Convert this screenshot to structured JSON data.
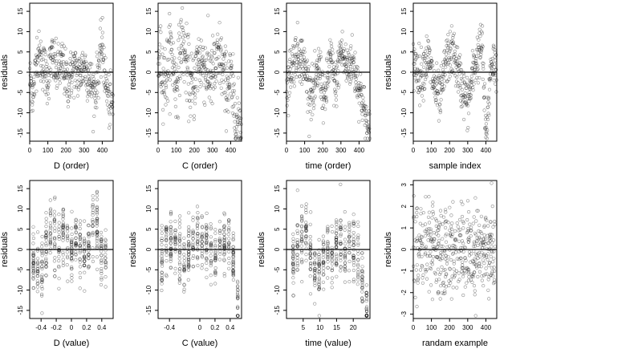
{
  "chart_data": [
    {
      "type": "scatter",
      "xlabel": "D (order)",
      "ylabel": "residuals",
      "xlim": [
        0,
        460
      ],
      "ylim": [
        -17,
        17
      ],
      "xticks": [
        0,
        100,
        200,
        300,
        400
      ],
      "yticks": [
        -15,
        -10,
        -5,
        0,
        5,
        10,
        15
      ],
      "hline": 0,
      "grid": false,
      "n_points": 460,
      "pattern": "clustered waves",
      "points": [
        [
          5,
          -2
        ],
        [
          20,
          -6
        ],
        [
          40,
          5
        ],
        [
          60,
          3
        ],
        [
          80,
          1
        ],
        [
          100,
          -2
        ],
        [
          120,
          4
        ],
        [
          150,
          0
        ],
        [
          180,
          2
        ],
        [
          210,
          -3
        ],
        [
          240,
          1
        ],
        [
          270,
          -1
        ],
        [
          300,
          2
        ],
        [
          330,
          -2
        ],
        [
          360,
          -5
        ],
        [
          400,
          7
        ],
        [
          420,
          -3
        ],
        [
          440,
          -8
        ]
      ]
    },
    {
      "type": "scatter",
      "xlabel": "C (order)",
      "ylabel": "residuals",
      "xlim": [
        0,
        460
      ],
      "ylim": [
        -17,
        17
      ],
      "xticks": [
        0,
        100,
        200,
        300,
        400
      ],
      "yticks": [
        -15,
        -10,
        -5,
        0,
        5,
        10,
        15
      ],
      "hline": 0,
      "grid": false,
      "n_points": 460,
      "pattern": "diffuse cloud",
      "points": [
        [
          10,
          3
        ],
        [
          40,
          -2
        ],
        [
          70,
          6
        ],
        [
          100,
          -4
        ],
        [
          130,
          8
        ],
        [
          160,
          1
        ],
        [
          190,
          -5
        ],
        [
          220,
          3
        ],
        [
          250,
          2
        ],
        [
          280,
          -1
        ],
        [
          310,
          0
        ],
        [
          340,
          4
        ],
        [
          370,
          -3
        ],
        [
          400,
          -2
        ],
        [
          430,
          -12
        ]
      ]
    },
    {
      "type": "scatter",
      "xlabel": "time (order)",
      "ylabel": "residuals",
      "xlim": [
        0,
        460
      ],
      "ylim": [
        -17,
        17
      ],
      "xticks": [
        0,
        100,
        200,
        300,
        400
      ],
      "yticks": [
        -15,
        -10,
        -5,
        0,
        5,
        10,
        15
      ],
      "hline": 0,
      "grid": false,
      "n_points": 460,
      "pattern": "alternating blocks",
      "points": [
        [
          5,
          -3
        ],
        [
          30,
          2
        ],
        [
          60,
          5
        ],
        [
          90,
          3
        ],
        [
          120,
          -3
        ],
        [
          150,
          -6
        ],
        [
          180,
          2
        ],
        [
          210,
          -8
        ],
        [
          240,
          4
        ],
        [
          270,
          -4
        ],
        [
          300,
          6
        ],
        [
          330,
          1
        ],
        [
          360,
          3
        ],
        [
          390,
          -2
        ],
        [
          420,
          -7
        ],
        [
          450,
          -15
        ]
      ]
    },
    {
      "type": "scatter",
      "xlabel": "sample index",
      "ylabel": "residuals",
      "xlim": [
        0,
        460
      ],
      "ylim": [
        -17,
        17
      ],
      "xticks": [
        0,
        100,
        200,
        300,
        400
      ],
      "yticks": [
        -15,
        -10,
        -5,
        0,
        5,
        10,
        15
      ],
      "hline": 0,
      "grid": false,
      "n_points": 460,
      "pattern": "blocky clusters",
      "points": [
        [
          10,
          2
        ],
        [
          40,
          -1
        ],
        [
          80,
          4
        ],
        [
          120,
          -4
        ],
        [
          150,
          -7
        ],
        [
          180,
          3
        ],
        [
          220,
          5
        ],
        [
          260,
          -2
        ],
        [
          300,
          -8
        ],
        [
          340,
          2
        ],
        [
          380,
          7
        ],
        [
          400,
          -17
        ],
        [
          430,
          3
        ],
        [
          450,
          2
        ]
      ]
    },
    {
      "type": "scatter",
      "xlabel": "D (value)",
      "ylabel": "residuals",
      "xlim": [
        -0.55,
        0.55
      ],
      "ylim": [
        -17,
        17
      ],
      "xticks": [
        -0.4,
        -0.2,
        0.0,
        0.2,
        0.4
      ],
      "ytick_labels": [
        "-15",
        "-10",
        "-5",
        "0",
        "5",
        "10",
        "15"
      ],
      "hline": 0,
      "grid": false,
      "n_points": 460,
      "pattern": "discrete vertical columns",
      "points": [
        [
          -0.5,
          -3
        ],
        [
          -0.4,
          -6
        ],
        [
          -0.3,
          4
        ],
        [
          -0.2,
          3
        ],
        [
          -0.15,
          0
        ],
        [
          -0.1,
          5
        ],
        [
          0.0,
          -2
        ],
        [
          0.05,
          2
        ],
        [
          0.1,
          3
        ],
        [
          0.2,
          -3
        ],
        [
          0.3,
          8
        ],
        [
          0.4,
          -2
        ],
        [
          0.45,
          -1
        ]
      ]
    },
    {
      "type": "scatter",
      "xlabel": "C (value)",
      "ylabel": "residuals",
      "xlim": [
        -0.55,
        0.55
      ],
      "ylim": [
        -17,
        17
      ],
      "xticks": [
        -0.4,
        0.0,
        0.2,
        0.4
      ],
      "ytick_labels": [
        "-15",
        "-10",
        "-5",
        "0",
        "5",
        "10",
        "15"
      ],
      "hline": 0,
      "grid": false,
      "n_points": 460,
      "pattern": "discrete vertical columns",
      "points": [
        [
          -0.5,
          -2
        ],
        [
          -0.45,
          0
        ],
        [
          -0.3,
          3
        ],
        [
          -0.2,
          -4
        ],
        [
          -0.1,
          2
        ],
        [
          0.0,
          3
        ],
        [
          0.1,
          1
        ],
        [
          0.2,
          -3
        ],
        [
          0.3,
          4
        ],
        [
          0.45,
          -2
        ],
        [
          0.5,
          -12
        ]
      ]
    },
    {
      "type": "scatter",
      "xlabel": "time (value)",
      "ylabel": "residuals",
      "xlim": [
        0,
        25
      ],
      "ylim": [
        -17,
        17
      ],
      "xticks": [
        5,
        10,
        15,
        20
      ],
      "yticks": [
        -15,
        -10,
        -5,
        0,
        5,
        10,
        15
      ],
      "hline": 0,
      "grid": false,
      "n_points": 460,
      "pattern": "discrete vertical columns",
      "points": [
        [
          2,
          -2
        ],
        [
          4,
          3
        ],
        [
          6,
          4
        ],
        [
          8,
          -4
        ],
        [
          10,
          -6
        ],
        [
          12,
          2
        ],
        [
          14,
          -2
        ],
        [
          16,
          3
        ],
        [
          18,
          -1
        ],
        [
          20,
          1
        ],
        [
          22,
          -3
        ],
        [
          24,
          -15
        ]
      ]
    },
    {
      "type": "scatter",
      "xlabel": "randam example",
      "ylabel": "residuals",
      "xlim": [
        0,
        460
      ],
      "ylim": [
        -3.2,
        3.2
      ],
      "xticks": [
        0,
        100,
        200,
        300,
        400
      ],
      "yticks": [
        -3,
        -2,
        -1,
        0,
        1,
        2,
        3
      ],
      "hline": 0,
      "grid": false,
      "n_points": 460,
      "pattern": "uniform noise",
      "points": [
        [
          10,
          2
        ],
        [
          60,
          -1
        ],
        [
          110,
          1
        ],
        [
          160,
          -2
        ],
        [
          210,
          0.5
        ],
        [
          260,
          1.5
        ],
        [
          310,
          -0.5
        ],
        [
          360,
          -1.5
        ],
        [
          410,
          0.8
        ],
        [
          450,
          -3
        ]
      ]
    }
  ]
}
